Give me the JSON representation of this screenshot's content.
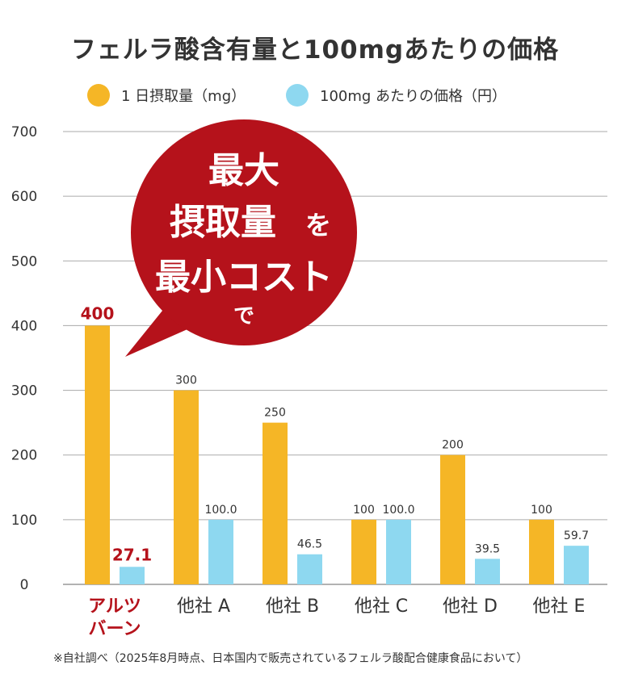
{
  "title": "フェルラ酸含有量と100mgあたりの価格",
  "colors": {
    "orange": "#F5B626",
    "blue": "#8ED8F0",
    "red": "#B5121B",
    "grid": "#999999"
  },
  "callout": {
    "line1": "最大",
    "line2a": "摂取量",
    "line2b": "を",
    "line3": "最小コスト",
    "line4": "で"
  },
  "footnote": "※自社調べ（2025年8月時点、日本国内で販売されているフェルラ酸配合健康食品において）",
  "chart_data": {
    "type": "bar",
    "title": "フェルラ酸含有量と100mgあたりの価格",
    "categories": [
      "アルツバーン",
      "他社 A",
      "他社 B",
      "他社 C",
      "他社 D",
      "他社 E"
    ],
    "category_lines": [
      [
        "アルツ",
        "バーン"
      ],
      [
        "他社 A"
      ],
      [
        "他社 B"
      ],
      [
        "他社 C"
      ],
      [
        "他社 D"
      ],
      [
        "他社 E"
      ]
    ],
    "series": [
      {
        "name": "1 日摂取量（mg）",
        "values": [
          400,
          300,
          250,
          100,
          200,
          100
        ],
        "labels": [
          "400",
          "300",
          "250",
          "100",
          "200",
          "100"
        ]
      },
      {
        "name": "100mg あたりの価格（円）",
        "values": [
          27.1,
          100.0,
          46.5,
          100.0,
          39.5,
          59.7
        ],
        "labels": [
          "27.1",
          "100.0",
          "46.5",
          "100.0",
          "39.5",
          "59.7"
        ]
      }
    ],
    "yticks": [
      "0",
      "100",
      "200",
      "300",
      "400",
      "500",
      "600",
      "700"
    ],
    "ylim": [
      0,
      700
    ],
    "grid": true,
    "legend": "top",
    "highlight_category": "アルツバーン"
  }
}
